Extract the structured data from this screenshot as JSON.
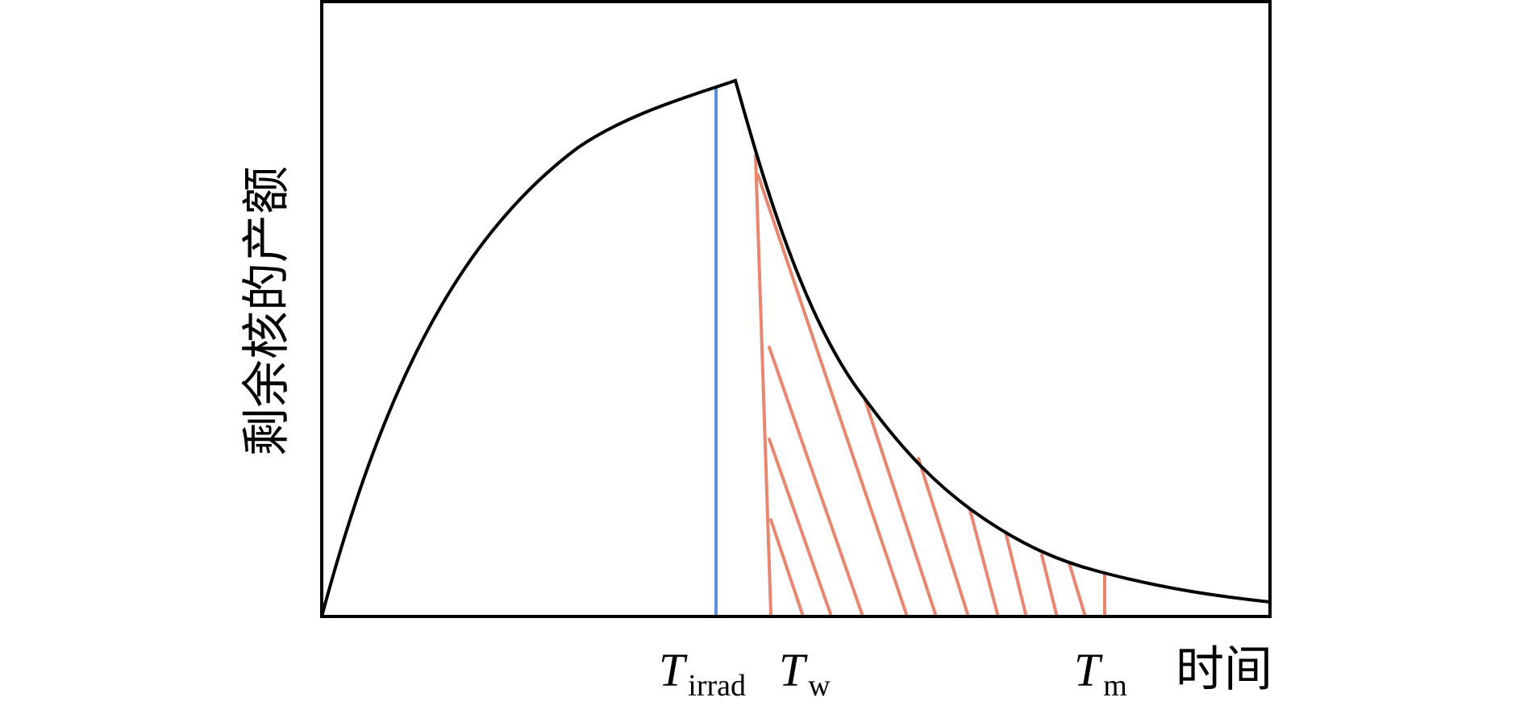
{
  "y_axis_label": "剩余核的产额",
  "x_axis_label": "时间",
  "markers": [
    {
      "main": "T",
      "sub": "irrad"
    },
    {
      "main": "T",
      "sub": "w"
    },
    {
      "main": "T",
      "sub": "m"
    }
  ]
}
